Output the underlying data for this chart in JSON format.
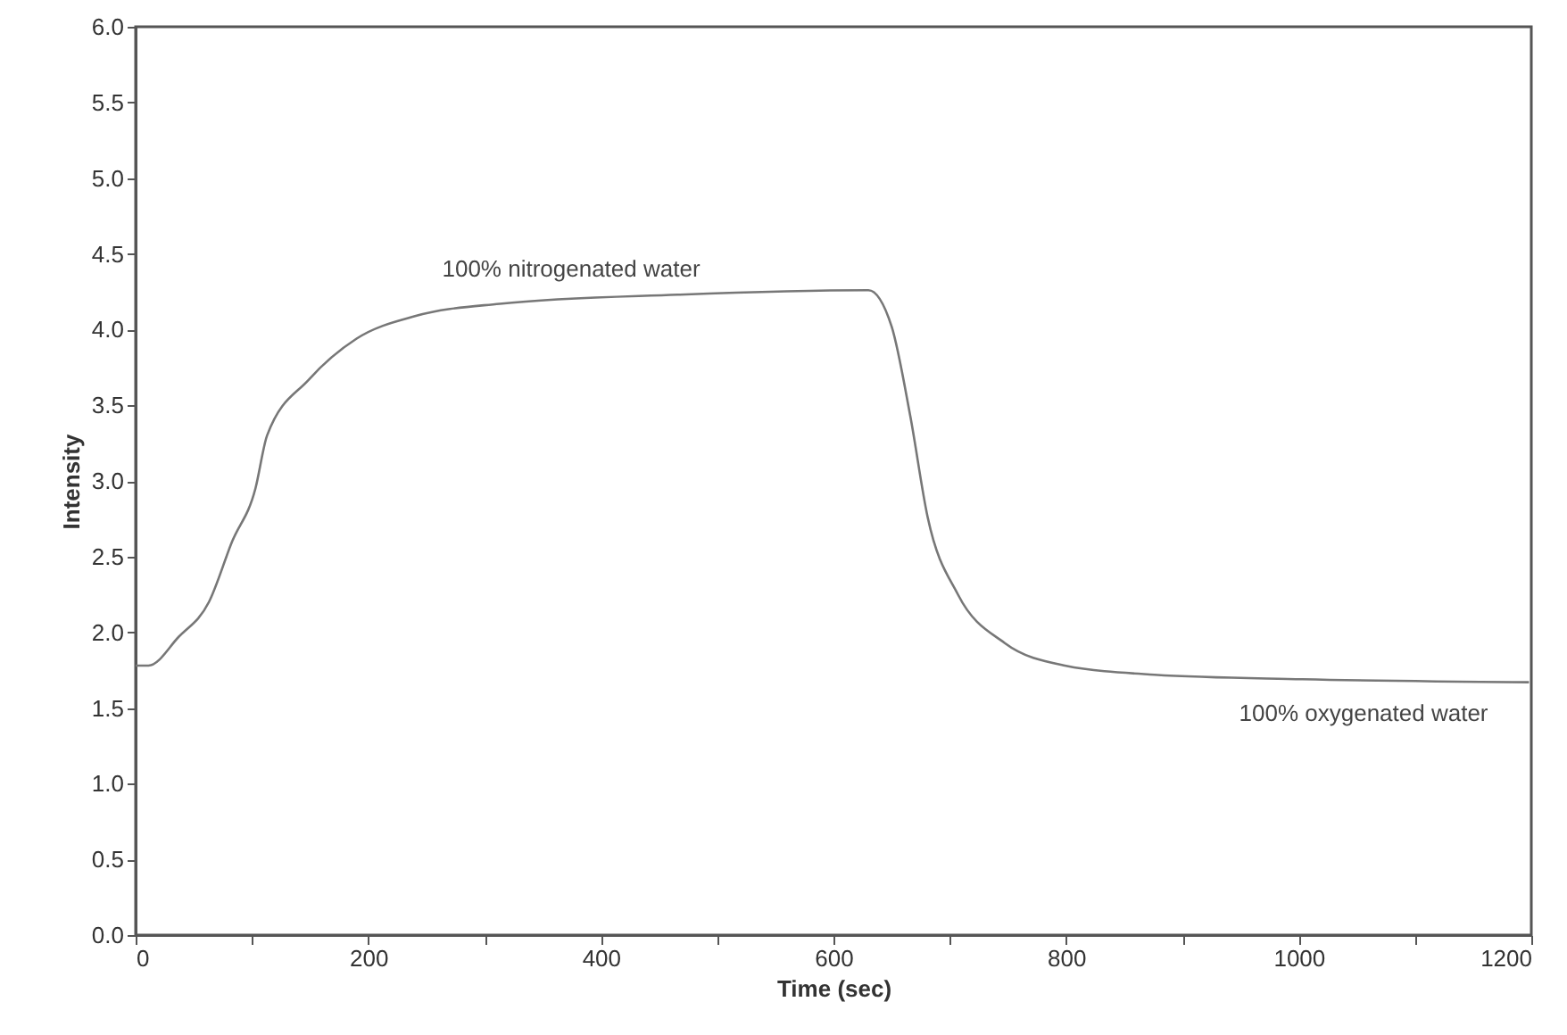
{
  "chart_data": {
    "type": "line",
    "xlabel": "Time (sec)",
    "ylabel": "Intensity",
    "x": [
      0,
      11,
      37,
      63,
      83,
      103,
      113,
      149,
      190,
      241,
      313,
      466,
      630,
      650,
      666,
      681,
      707,
      747,
      799,
      876,
      1003,
      1198
    ],
    "series": [
      {
        "color": "#777777",
        "values": [
          1.78,
          1.78,
          1.97,
          2.2,
          2.6,
          2.95,
          3.3,
          3.67,
          3.94,
          4.09,
          4.17,
          4.23,
          4.26,
          4.02,
          3.43,
          2.76,
          2.25,
          1.93,
          1.78,
          1.72,
          1.69,
          1.67
        ]
      }
    ],
    "xlim": [
      0,
      1200
    ],
    "xticks": [
      0,
      {
        "value": 100,
        "label": null
      },
      200,
      {
        "value": 300,
        "label": null
      },
      400,
      {
        "value": 500,
        "label": null
      },
      600,
      {
        "value": 700,
        "label": null
      },
      800,
      {
        "value": 900,
        "label": null
      },
      1000,
      {
        "value": 1100,
        "label": null
      },
      1200
    ],
    "ylim": [
      0,
      6
    ],
    "yticks": [
      {
        "value": 0,
        "label": "0.0"
      },
      {
        "value": 0.5,
        "label": "0.5"
      },
      {
        "value": 1,
        "label": "1.0"
      },
      {
        "value": 1.5,
        "label": "1.5"
      },
      {
        "value": 2,
        "label": "2.0"
      },
      {
        "value": 2.5,
        "label": "2.5"
      },
      {
        "value": 3,
        "label": "3.0"
      },
      {
        "value": 3.5,
        "label": "3.5"
      },
      {
        "value": 4,
        "label": "4.0"
      },
      {
        "value": 4.5,
        "label": "4.5"
      },
      {
        "value": 5,
        "label": "5.0"
      },
      {
        "value": 5.5,
        "label": "5.5"
      },
      {
        "value": 6,
        "label": "6.0"
      }
    ],
    "annotations": [
      "100% nitrogenated water",
      "100% oxygenated water"
    ],
    "grid": false,
    "legend": false,
    "marker": "none",
    "line_style": "solid"
  }
}
